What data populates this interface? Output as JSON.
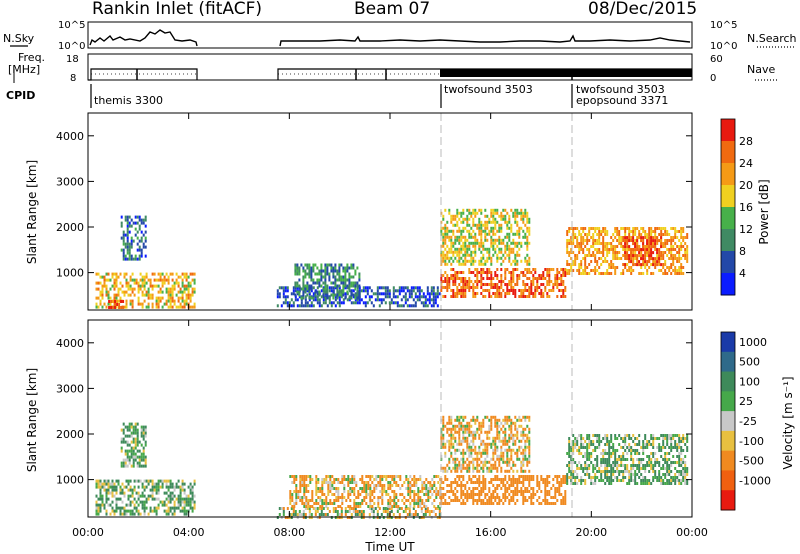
{
  "header": {
    "title": "Rankin Inlet (fitACF)",
    "beam": "Beam 07",
    "date": "08/Dec/2015"
  },
  "sky_panel": {
    "left_label": "N.Sky",
    "right_label": "N.Search",
    "ticks": [
      "10^5",
      "10^0"
    ]
  },
  "freq_panel": {
    "left_label_1": "Freq.",
    "left_label_2": "[MHz]",
    "right_label": "Nave",
    "left_ticks": [
      "18",
      "8"
    ],
    "right_ticks": [
      "60",
      "0"
    ]
  },
  "cpid_panel": {
    "label": "CPID",
    "programs": [
      {
        "text": "themis 3300",
        "start": 0.1
      },
      {
        "text": "twofsound 3503",
        "start": 14.1
      },
      {
        "text": "twofsound 3503",
        "start": 19.2
      },
      {
        "text": "epopsound 3371",
        "start": 19.2
      }
    ]
  },
  "colors": {
    "power_scale": [
      "#0a1cff",
      "#2348a8",
      "#3f8a63",
      "#47b04a",
      "#f0d020",
      "#f59a16",
      "#f06a10",
      "#e81a10"
    ],
    "velocity_scale": [
      "#1a3aa8",
      "#2f6a8a",
      "#3e8a5a",
      "#46a84a",
      "#c8c8c8",
      "#e8c040",
      "#f08a20",
      "#f06010",
      "#e81a10"
    ],
    "gray_fill": "#c8c8c8"
  },
  "colorbars": {
    "power": {
      "label": "Power [dB]",
      "ticks": [
        "4",
        "8",
        "12",
        "16",
        "20",
        "24",
        "28"
      ]
    },
    "velocity": {
      "label": "Velocity [m s⁻¹]",
      "ticks": [
        "1000",
        "500",
        "100",
        "25",
        "-25",
        "-100",
        "-500",
        "-1000"
      ]
    }
  },
  "chart_data": [
    {
      "type": "heatmap",
      "title": "Power",
      "xlabel": "Time UT",
      "ylabel": "Slant Range [km]",
      "xlim": [
        0,
        24
      ],
      "ylim": [
        180,
        4500
      ],
      "xticks": [
        "00:00",
        "04:00",
        "08:00",
        "12:00",
        "16:00",
        "20:00",
        "00:00"
      ],
      "yticks": [
        1000,
        2000,
        3000,
        4000
      ],
      "colorbar": "Power [dB]",
      "data_gap_hours": [
        [
          4.2,
          7.5
        ]
      ],
      "echo_regions": [
        {
          "t": [
            0.3,
            4.2
          ],
          "r": [
            250,
            1000
          ],
          "power_db": 20
        },
        {
          "t": [
            0.8,
            1.4
          ],
          "r": [
            250,
            400
          ],
          "power_db": 28
        },
        {
          "t": [
            1.3,
            2.3
          ],
          "r": [
            1300,
            2250
          ],
          "power_db": 8
        },
        {
          "t": [
            7.5,
            14.0
          ],
          "r": [
            250,
            700
          ],
          "power_db": 6
        },
        {
          "t": [
            8.2,
            10.8
          ],
          "r": [
            450,
            1200
          ],
          "power_db": 10
        },
        {
          "t": [
            14.0,
            19.0
          ],
          "r": [
            500,
            1100
          ],
          "power_db": 26
        },
        {
          "t": [
            14.0,
            17.5
          ],
          "r": [
            1200,
            2400
          ],
          "power_db": 18
        },
        {
          "t": [
            19.0,
            23.8
          ],
          "r": [
            1000,
            2000
          ],
          "power_db": 22
        },
        {
          "t": [
            21.3,
            22.8
          ],
          "r": [
            1200,
            1800
          ],
          "power_db": 28
        }
      ]
    },
    {
      "type": "heatmap",
      "title": "Velocity",
      "xlabel": "Time UT",
      "ylabel": "Slant Range [km]",
      "xlim": [
        0,
        24
      ],
      "ylim": [
        180,
        4500
      ],
      "xticks": [
        "00:00",
        "04:00",
        "08:00",
        "12:00",
        "16:00",
        "20:00",
        "00:00"
      ],
      "yticks": [
        1000,
        2000,
        3000,
        4000
      ],
      "colorbar": "Velocity [m s⁻¹]",
      "data_gap_hours": [
        [
          4.2,
          7.5
        ]
      ],
      "echo_regions": [
        {
          "t": [
            0.3,
            4.2
          ],
          "r": [
            250,
            1000
          ],
          "velocity": 100
        },
        {
          "t": [
            1.3,
            2.3
          ],
          "r": [
            1300,
            2250
          ],
          "velocity": 100
        },
        {
          "t": [
            7.5,
            14.0
          ],
          "r": [
            180,
            400
          ],
          "velocity": 0
        },
        {
          "t": [
            8.0,
            14.0
          ],
          "r": [
            400,
            1100
          ],
          "velocity": -100
        },
        {
          "t": [
            14.0,
            17.5
          ],
          "r": [
            1200,
            2400
          ],
          "velocity": -100
        },
        {
          "t": [
            14.0,
            19.0
          ],
          "r": [
            500,
            1100
          ],
          "velocity": -300
        },
        {
          "t": [
            19.0,
            23.8
          ],
          "r": [
            900,
            2000
          ],
          "velocity": 100
        }
      ]
    }
  ]
}
